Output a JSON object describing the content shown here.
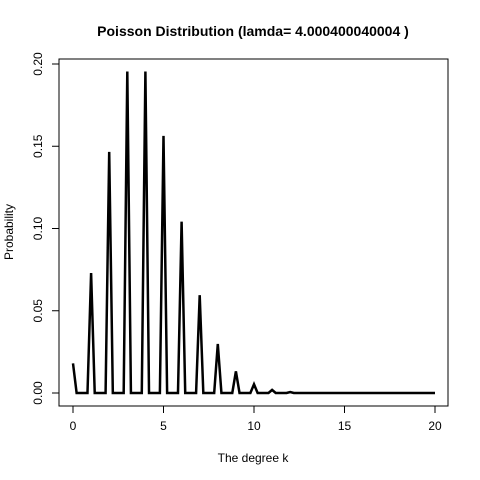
{
  "chart_data": {
    "type": "line",
    "title": "Poisson Distribution (lamda= 4.000400040004 )",
    "xlabel": "The degree k",
    "ylabel": "Probability",
    "xlim": [
      0,
      20
    ],
    "ylim": [
      0,
      0.2
    ],
    "x_ticks": [
      0,
      5,
      10,
      15,
      20
    ],
    "x_tick_labels": [
      "0",
      "5",
      "10",
      "15",
      "20"
    ],
    "y_ticks": [
      0,
      0.05,
      0.1,
      0.15,
      0.2
    ],
    "y_tick_labels": [
      "0.00",
      "0.05",
      "0.10",
      "0.15",
      "0.20"
    ],
    "grid": false,
    "series": [
      {
        "color": "#000000",
        "points": [
          [
            0,
            0.018
          ],
          [
            0.2,
            0.0
          ],
          [
            0.8,
            0.0
          ],
          [
            1,
            0.0729
          ],
          [
            1.2,
            0.0
          ],
          [
            1.8,
            0.0
          ],
          [
            2,
            0.1466
          ],
          [
            2.2,
            0.0
          ],
          [
            2.8,
            0.0
          ],
          [
            3,
            0.1954
          ],
          [
            3.2,
            0.0
          ],
          [
            3.8,
            0.0
          ],
          [
            4,
            0.1954
          ],
          [
            4.2,
            0.0
          ],
          [
            4.8,
            0.0
          ],
          [
            5,
            0.1563
          ],
          [
            5.2,
            0.0
          ],
          [
            5.8,
            0.0
          ],
          [
            6,
            0.1042
          ],
          [
            6.2,
            0.0
          ],
          [
            6.8,
            0.0
          ],
          [
            7,
            0.0595
          ],
          [
            7.2,
            0.0
          ],
          [
            7.8,
            0.0
          ],
          [
            8,
            0.0298
          ],
          [
            8.2,
            0.0
          ],
          [
            8.8,
            0.0
          ],
          [
            9,
            0.0132
          ],
          [
            9.2,
            0.0
          ],
          [
            9.8,
            0.0
          ],
          [
            10,
            0.0053
          ],
          [
            10.2,
            0.0
          ],
          [
            10.8,
            0.0
          ],
          [
            11,
            0.0019
          ],
          [
            11.2,
            0.0
          ],
          [
            11.8,
            0.0
          ],
          [
            12,
            0.0006
          ],
          [
            12.2,
            0.0
          ],
          [
            13,
            0.0
          ],
          [
            14,
            0.0
          ],
          [
            15,
            0.0
          ],
          [
            16,
            0.0
          ],
          [
            17,
            0.0
          ],
          [
            18,
            0.0
          ],
          [
            19,
            0.0
          ],
          [
            20,
            0.0
          ]
        ]
      }
    ]
  }
}
